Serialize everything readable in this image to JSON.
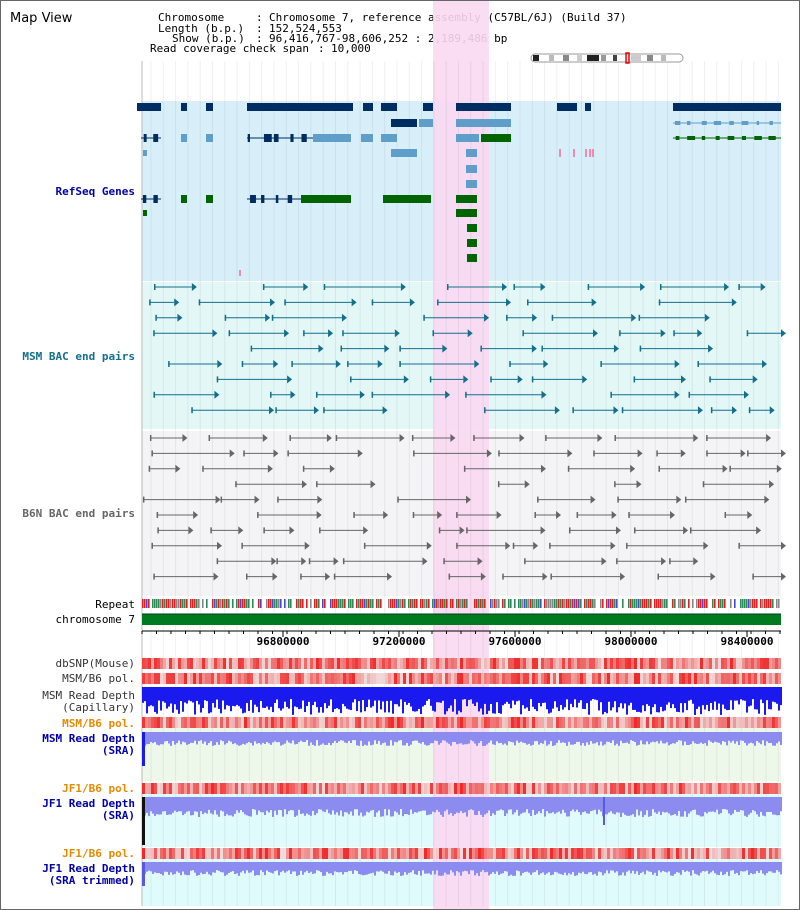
{
  "window": {
    "title": "Map View"
  },
  "header": {
    "rows": [
      {
        "label": "Chromosome",
        "value": "Chromosome 7, reference assembly (C57BL/6J) (Build 37)"
      },
      {
        "label": "Length (b.p.)",
        "value": "152,524,553"
      },
      {
        "label": "Show (b.p.)",
        "value": "96,416,767-98,606,252 : 2,189,486 bp"
      },
      {
        "label": "Read coverage check span",
        "value": "10,000"
      }
    ]
  },
  "tracks": {
    "refseq": "RefSeq Genes",
    "msm_bac": "MSM BAC end pairs",
    "b6n_bac": "B6N BAC end pairs",
    "repeat": "Repeat",
    "chromosome": "chromosome 7",
    "dbsnp": "dbSNP(Mouse)",
    "msm_b6_pol_1": "MSM/B6 pol.",
    "msm_depth_cap_1": "MSM Read Depth",
    "msm_depth_cap_2": "(Capillary)",
    "msm_b6_pol_2": "MSM/B6 pol.",
    "msm_depth_sra_1": "MSM Read Depth",
    "msm_depth_sra_2": "(SRA)",
    "jf1_b6_pol_1": "JF1/B6 pol.",
    "jf1_depth_sra_1": "JF1 Read Depth",
    "jf1_depth_sra_2": "(SRA)",
    "jf1_b6_pol_2": "JF1/B6 pol.",
    "jf1_depth_trim_1": "JF1 Read Depth",
    "jf1_depth_trim_2": "(SRA trimmed)"
  },
  "axis": {
    "ticks": [
      "96800000",
      "97200000",
      "97600000",
      "98000000",
      "98400000"
    ]
  },
  "colors": {
    "highlight": "#f9d8f2",
    "refseq_bg": "#d8eff9",
    "gene_navy": "#002d62",
    "gene_blue": "#5f9ec8",
    "gene_green": "#006400",
    "msm_bac": "#136f8c",
    "msm_label": "#136f8c",
    "b6n_bac": "#666666",
    "depth_blue": "#1a1aee",
    "depth_lavender": "#8c8cf0",
    "pol_label": "#e68a00",
    "depth_label": "#0000aa",
    "refseq_label": "#0000aa"
  }
}
